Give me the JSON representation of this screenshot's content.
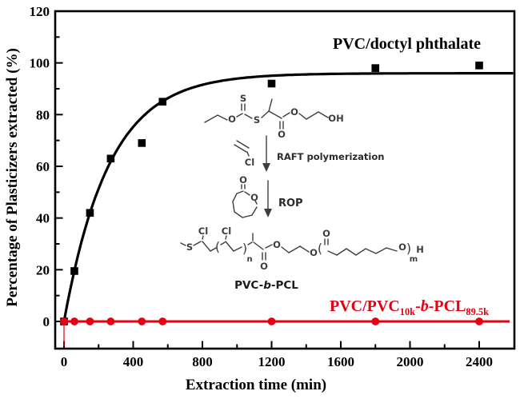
{
  "chart_data": {
    "type": "scatter",
    "title": "",
    "xlabel": "Extraction time (min)",
    "ylabel": "Percentage of Plasticizers extracted (%)",
    "xlim": [
      -50,
      2600
    ],
    "ylim": [
      -11,
      120
    ],
    "x_ticks": [
      0,
      400,
      800,
      1200,
      1600,
      2000,
      2400
    ],
    "x_minor_step": 200,
    "y_ticks": [
      0,
      20,
      40,
      60,
      80,
      100,
      120
    ],
    "y_minor_step": 10,
    "grid": false,
    "legend_position": "inline-annotations",
    "series": [
      {
        "name": "PVC/doctyl phthalate",
        "color": "#000000",
        "marker": "square",
        "x": [
          0,
          60,
          150,
          270,
          450,
          570,
          1200,
          1800,
          2400
        ],
        "y": [
          0,
          19.5,
          42,
          63,
          69,
          85,
          92,
          98,
          99
        ],
        "fit": {
          "type": "exponential-rise",
          "plateau": 96,
          "tau": 261
        }
      },
      {
        "name": "PVC/PVC10k-b-PCL89.5k",
        "color": "#e60012",
        "marker": "circle",
        "line": true,
        "stem_at_zero": true,
        "x": [
          0,
          60,
          150,
          270,
          450,
          570,
          1200,
          1800,
          2400
        ],
        "y": [
          0,
          0,
          0,
          0,
          0,
          0,
          0,
          0,
          0
        ]
      }
    ]
  },
  "labels": {
    "black_series": "PVC/doctyl phthalate",
    "red_series": {
      "p1": "PVC/PVC",
      "s1": "10k",
      "d1": "-",
      "b": "b",
      "d2": "-",
      "p2": "PCL",
      "s2": "89.5k"
    }
  },
  "scheme": {
    "atoms": {
      "S": "S",
      "O": "O",
      "OH": "OH",
      "Cl": "Cl",
      "H": "H",
      "n": "n",
      "m": "m",
      "paren_open": "(",
      "paren_close": ")"
    },
    "raft_step": "RAFT polymerization",
    "rop_step": "ROP",
    "product_name": {
      "p1": "PVC-",
      "b": "b",
      "p2": "-PCL"
    }
  }
}
